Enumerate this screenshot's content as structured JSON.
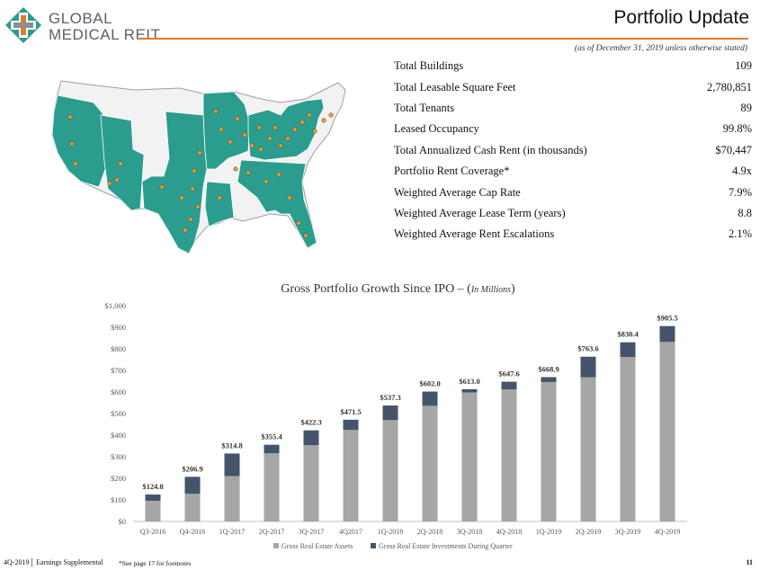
{
  "brand": {
    "line1": "GLOBAL",
    "line2": "MEDICAL REIT"
  },
  "header": {
    "title": "Portfolio Update",
    "subtitle": "(as of December 31, 2019 unless otherwise stated)"
  },
  "stats": [
    {
      "label": "Total Buildings",
      "value": "109"
    },
    {
      "label": "Total Leasable Square Feet",
      "value": "2,780,851"
    },
    {
      "label": "Total Tenants",
      "value": "89"
    },
    {
      "label": "Leased Occupancy",
      "value": "99.8%"
    },
    {
      "label": "Total Annualized Cash Rent (in thousands)",
      "value": "$70,447"
    },
    {
      "label": "Portfolio Rent Coverage*",
      "value": "4.9x"
    },
    {
      "label": "Weighted Average Cap Rate",
      "value": "7.9%"
    },
    {
      "label": "Weighted Average Lease Term (years)",
      "value": "8.8"
    },
    {
      "label": "Weighted Average Rent Escalations",
      "value": "2.1%"
    }
  ],
  "colors": {
    "teal": "#2a9d8f",
    "orange": "#e07a2c",
    "gray_bar": "#a6a6a6",
    "navy_bar": "#44546a"
  },
  "chart_data": {
    "type": "bar",
    "stacked": true,
    "title": "Gross Portfolio Growth Since IPO – (",
    "title_unit": "In Millions",
    "title_close": ")",
    "categories": [
      "Q3-2016",
      "Q4-2016",
      "1Q-2017",
      "2Q-2017",
      "3Q-2017",
      "4Q2017",
      "1Q-2018",
      "2Q-2018",
      "3Q-2018",
      "4Q-2018",
      "1Q-2019",
      "2Q-2019",
      "3Q-2019",
      "4Q-2019"
    ],
    "series": [
      {
        "name": "Gross Real Estate Assets",
        "values": [
          96,
          128,
          210,
          316,
          354,
          424,
          470,
          536,
          598,
          612,
          646,
          668,
          762,
          832
        ]
      },
      {
        "name": "Gross Real Estate Investments During Quarter",
        "values": [
          28.8,
          78.9,
          104.8,
          39.4,
          68.3,
          47.5,
          67.3,
          66.0,
          15.0,
          35.6,
          22.9,
          95.6,
          68.4,
          73.5
        ]
      }
    ],
    "totals": [
      "$124.8",
      "$206.9",
      "$314.8",
      "$355.4",
      "$422.3",
      "$471.5",
      "$537.3",
      "$602.0",
      "$613.0",
      "$647.6",
      "$668.9",
      "$763.6",
      "$830.4",
      "$905.5"
    ],
    "yticks": [
      "$0",
      "$100",
      "$200",
      "$300",
      "$400",
      "$500",
      "$600",
      "$700",
      "$800",
      "$900",
      "$1,000"
    ],
    "ylim": [
      0,
      1000
    ]
  },
  "footer": {
    "left": "4Q-2019│ Earnings Supplemental",
    "note": "*See page 17 for footnotes",
    "page": "11"
  }
}
